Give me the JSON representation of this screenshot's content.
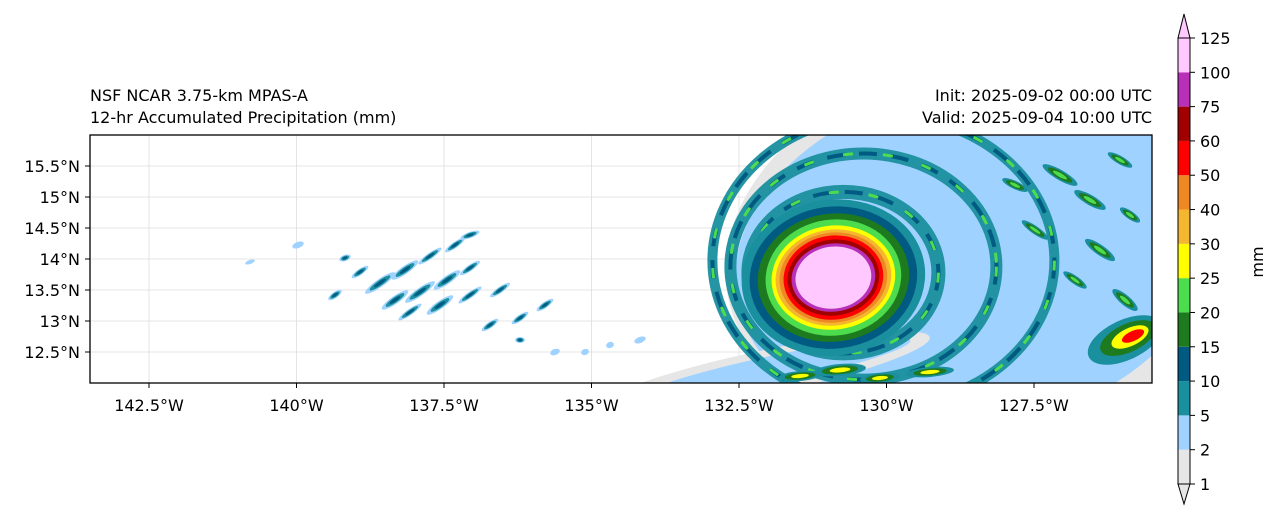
{
  "title": {
    "left_line1": "NSF NCAR 3.75-km MPAS-A",
    "left_line2": "12-hr Accumulated Precipitation (mm)",
    "right_line1": "Init: 2025-09-02 00:00 UTC",
    "right_line2": "Valid: 2025-09-04 10:00 UTC"
  },
  "map": {
    "lon_range": [
      -143.5,
      -125.5
    ],
    "lat_range": [
      12.0,
      16.0
    ],
    "x_ticks": [
      {
        "lon": -142.5,
        "label": "142.5°W"
      },
      {
        "lon": -140.0,
        "label": "140°W"
      },
      {
        "lon": -137.5,
        "label": "137.5°W"
      },
      {
        "lon": -135.0,
        "label": "135°W"
      },
      {
        "lon": -132.5,
        "label": "132.5°W"
      },
      {
        "lon": -130.0,
        "label": "130°W"
      },
      {
        "lon": -127.5,
        "label": "127.5°W"
      }
    ],
    "y_ticks": [
      {
        "lat": 12.5,
        "label": "12.5°N"
      },
      {
        "lat": 13.0,
        "label": "13°N"
      },
      {
        "lat": 13.5,
        "label": "13.5°N"
      },
      {
        "lat": 14.0,
        "label": "14°N"
      },
      {
        "lat": 14.5,
        "label": "14.5°N"
      },
      {
        "lat": 15.0,
        "label": "15°N"
      },
      {
        "lat": 15.5,
        "label": "15.5°N"
      }
    ],
    "gridlines": true
  },
  "colorbar": {
    "label": "mm",
    "levels": [
      "1",
      "2",
      "5",
      "10",
      "15",
      "20",
      "25",
      "30",
      "40",
      "50",
      "60",
      "75",
      "100",
      "125"
    ],
    "colors": [
      "#e6e6e6",
      "#a0d2ff",
      "#1a8f9e",
      "#005a82",
      "#1e7a1e",
      "#4ddc4d",
      "#ffff00",
      "#f5b730",
      "#ee8822",
      "#ff0000",
      "#a00000",
      "#b830b8",
      "#ffc8ff"
    ],
    "extend": "both"
  },
  "storm": {
    "center_lon": -130.9,
    "center_lat": 13.7
  }
}
